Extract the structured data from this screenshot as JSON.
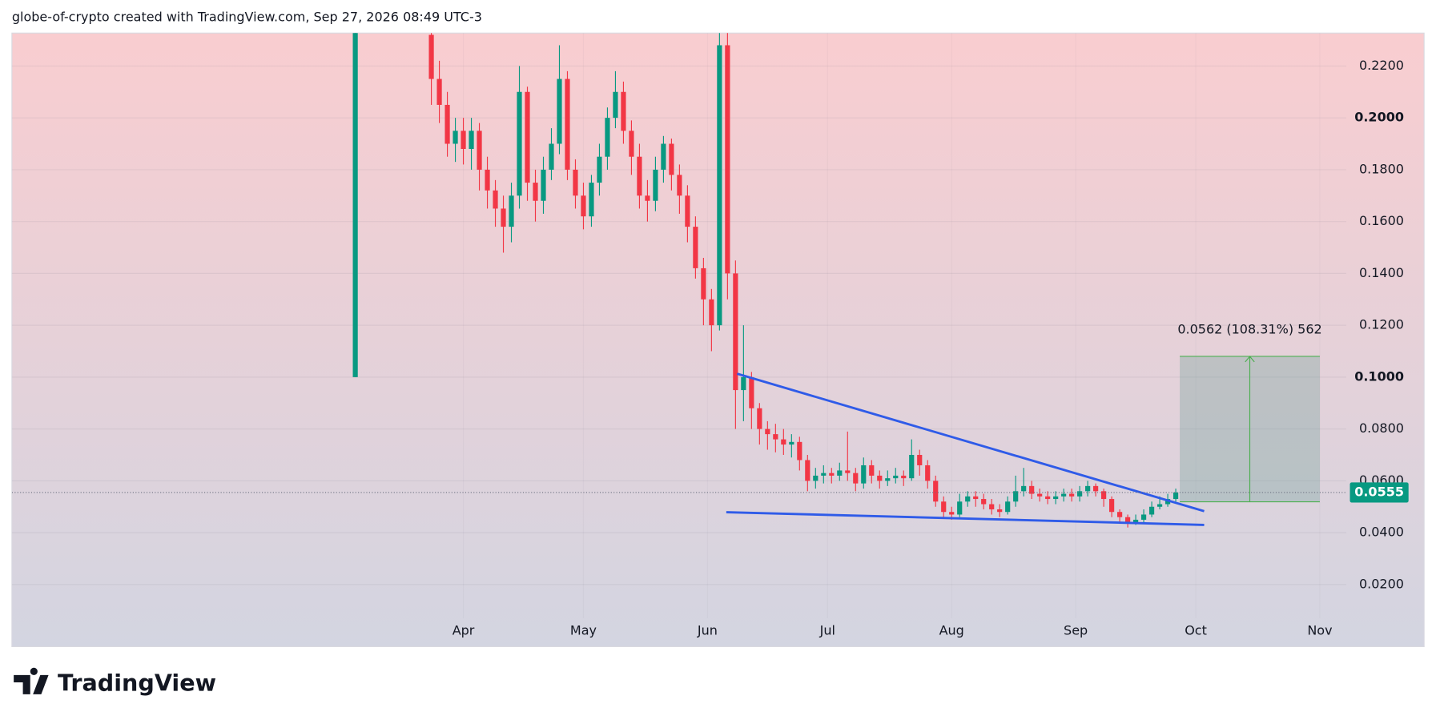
{
  "header": {
    "text": "globe-of-crypto created with TradingView.com, Sep 27, 2026 08:49 UTC-3"
  },
  "chart_data": {
    "type": "candlestick",
    "xlim": [
      -112.8,
      220.6
    ],
    "ylim": [
      0.007,
      0.2327
    ],
    "grid": true,
    "up_color": "#089981",
    "down_color": "#f23645",
    "xticks": [
      {
        "value": 0,
        "label": "Apr"
      },
      {
        "value": 30,
        "label": "May"
      },
      {
        "value": 61,
        "label": "Jun"
      },
      {
        "value": 91,
        "label": "Jul"
      },
      {
        "value": 122,
        "label": "Aug"
      },
      {
        "value": 153,
        "label": "Sep"
      },
      {
        "value": 183,
        "label": "Oct"
      },
      {
        "value": 214,
        "label": "Nov"
      }
    ],
    "yticks": [
      {
        "value": 0.02,
        "label": "0.0200"
      },
      {
        "value": 0.04,
        "label": "0.0400"
      },
      {
        "value": 0.06,
        "label": "0.0600"
      },
      {
        "value": 0.08,
        "label": "0.0800"
      },
      {
        "value": 0.1,
        "label": "0.1000"
      },
      {
        "value": 0.12,
        "label": "0.1200"
      },
      {
        "value": 0.14,
        "label": "0.1400"
      },
      {
        "value": 0.16,
        "label": "0.1600"
      },
      {
        "value": 0.18,
        "label": "0.1800"
      },
      {
        "value": 0.2,
        "label": "0.2000"
      },
      {
        "value": 0.22,
        "label": "0.2200"
      }
    ],
    "x": [
      -27,
      -8,
      -6,
      -4,
      -2,
      0,
      2,
      4,
      6,
      8,
      10,
      12,
      14,
      16,
      18,
      20,
      22,
      24,
      26,
      28,
      30,
      32,
      34,
      36,
      38,
      40,
      42,
      44,
      46,
      48,
      50,
      52,
      54,
      56,
      58,
      60,
      62,
      64,
      66,
      68,
      70,
      72,
      74,
      76,
      78,
      80,
      82,
      84,
      86,
      88,
      90,
      92,
      94,
      96,
      98,
      100,
      102,
      104,
      106,
      108,
      110,
      112,
      114,
      116,
      118,
      120,
      122,
      124,
      126,
      128,
      130,
      132,
      134,
      136,
      138,
      140,
      142,
      144,
      146,
      148,
      150,
      152,
      154,
      156,
      158,
      160,
      162,
      164,
      166,
      168,
      170,
      172,
      174,
      176,
      178
    ],
    "open": [
      0.1,
      0.232,
      0.215,
      0.205,
      0.19,
      0.195,
      0.188,
      0.195,
      0.18,
      0.172,
      0.165,
      0.158,
      0.17,
      0.21,
      0.175,
      0.168,
      0.18,
      0.19,
      0.215,
      0.18,
      0.17,
      0.162,
      0.175,
      0.185,
      0.2,
      0.21,
      0.195,
      0.185,
      0.17,
      0.168,
      0.18,
      0.19,
      0.178,
      0.17,
      0.158,
      0.142,
      0.13,
      0.12,
      0.228,
      0.14,
      0.095,
      0.1,
      0.088,
      0.08,
      0.078,
      0.076,
      0.074,
      0.075,
      0.068,
      0.06,
      0.062,
      0.063,
      0.062,
      0.064,
      0.063,
      0.059,
      0.066,
      0.062,
      0.06,
      0.061,
      0.062,
      0.061,
      0.07,
      0.066,
      0.06,
      0.052,
      0.048,
      0.047,
      0.052,
      0.054,
      0.053,
      0.051,
      0.049,
      0.048,
      0.052,
      0.056,
      0.058,
      0.055,
      0.054,
      0.053,
      0.054,
      0.055,
      0.054,
      0.056,
      0.058,
      0.056,
      0.053,
      0.048,
      0.046,
      0.044,
      0.045,
      0.047,
      0.05,
      0.051,
      0.053
    ],
    "high": [
      0.24,
      0.234,
      0.222,
      0.21,
      0.2,
      0.2,
      0.2,
      0.198,
      0.185,
      0.176,
      0.17,
      0.175,
      0.22,
      0.212,
      0.18,
      0.185,
      0.196,
      0.228,
      0.218,
      0.184,
      0.175,
      0.178,
      0.19,
      0.204,
      0.218,
      0.214,
      0.199,
      0.19,
      0.176,
      0.185,
      0.193,
      0.192,
      0.182,
      0.174,
      0.162,
      0.146,
      0.134,
      0.24,
      0.235,
      0.145,
      0.12,
      0.102,
      0.09,
      0.083,
      0.082,
      0.08,
      0.078,
      0.077,
      0.07,
      0.065,
      0.066,
      0.065,
      0.067,
      0.079,
      0.065,
      0.069,
      0.068,
      0.064,
      0.064,
      0.065,
      0.064,
      0.076,
      0.072,
      0.068,
      0.062,
      0.054,
      0.05,
      0.055,
      0.056,
      0.056,
      0.055,
      0.053,
      0.051,
      0.054,
      0.062,
      0.065,
      0.06,
      0.057,
      0.056,
      0.056,
      0.057,
      0.057,
      0.058,
      0.06,
      0.059,
      0.057,
      0.054,
      0.049,
      0.047,
      0.047,
      0.049,
      0.052,
      0.054,
      0.055,
      0.057
    ],
    "low": [
      0.1,
      0.205,
      0.198,
      0.185,
      0.183,
      0.182,
      0.18,
      0.172,
      0.165,
      0.158,
      0.148,
      0.152,
      0.165,
      0.168,
      0.16,
      0.163,
      0.176,
      0.186,
      0.176,
      0.165,
      0.157,
      0.158,
      0.17,
      0.18,
      0.196,
      0.19,
      0.178,
      0.165,
      0.16,
      0.164,
      0.175,
      0.172,
      0.163,
      0.152,
      0.138,
      0.12,
      0.11,
      0.118,
      0.13,
      0.08,
      0.083,
      0.08,
      0.074,
      0.072,
      0.071,
      0.07,
      0.069,
      0.064,
      0.056,
      0.057,
      0.059,
      0.059,
      0.06,
      0.06,
      0.056,
      0.057,
      0.059,
      0.057,
      0.058,
      0.059,
      0.058,
      0.06,
      0.062,
      0.057,
      0.05,
      0.046,
      0.045,
      0.046,
      0.05,
      0.05,
      0.049,
      0.047,
      0.046,
      0.047,
      0.05,
      0.054,
      0.053,
      0.052,
      0.051,
      0.051,
      0.052,
      0.052,
      0.052,
      0.054,
      0.054,
      0.05,
      0.046,
      0.044,
      0.042,
      0.043,
      0.044,
      0.046,
      0.049,
      0.05,
      0.052
    ],
    "close": [
      0.24,
      0.215,
      0.205,
      0.19,
      0.195,
      0.188,
      0.195,
      0.18,
      0.172,
      0.165,
      0.158,
      0.17,
      0.21,
      0.175,
      0.168,
      0.18,
      0.19,
      0.215,
      0.18,
      0.17,
      0.162,
      0.175,
      0.185,
      0.2,
      0.21,
      0.195,
      0.185,
      0.17,
      0.168,
      0.18,
      0.19,
      0.178,
      0.17,
      0.158,
      0.142,
      0.13,
      0.12,
      0.228,
      0.14,
      0.095,
      0.1,
      0.088,
      0.08,
      0.078,
      0.076,
      0.074,
      0.075,
      0.068,
      0.06,
      0.062,
      0.063,
      0.062,
      0.064,
      0.063,
      0.059,
      0.066,
      0.062,
      0.06,
      0.061,
      0.062,
      0.061,
      0.07,
      0.066,
      0.06,
      0.052,
      0.048,
      0.047,
      0.052,
      0.054,
      0.053,
      0.051,
      0.049,
      0.048,
      0.052,
      0.056,
      0.058,
      0.055,
      0.054,
      0.053,
      0.054,
      0.055,
      0.054,
      0.056,
      0.058,
      0.056,
      0.053,
      0.048,
      0.046,
      0.044,
      0.045,
      0.047,
      0.05,
      0.051,
      0.053,
      0.0555
    ],
    "last_price": 0.0555,
    "trendlines": [
      {
        "color": "#2f5be8",
        "x": [
          68.4,
          185.1
        ],
        "y": [
          0.1013,
          0.0483
        ]
      },
      {
        "color": "#2f5be8",
        "x": [
          65.7,
          185.1
        ],
        "y": [
          0.0479,
          0.043
        ]
      }
    ],
    "measure": {
      "x": [
        179,
        214
      ],
      "y": [
        0.0519,
        0.108
      ],
      "label": "0.0562 (108.31%) 562",
      "color": "#4caf50"
    }
  },
  "footer": {
    "brand": "TradingView"
  }
}
